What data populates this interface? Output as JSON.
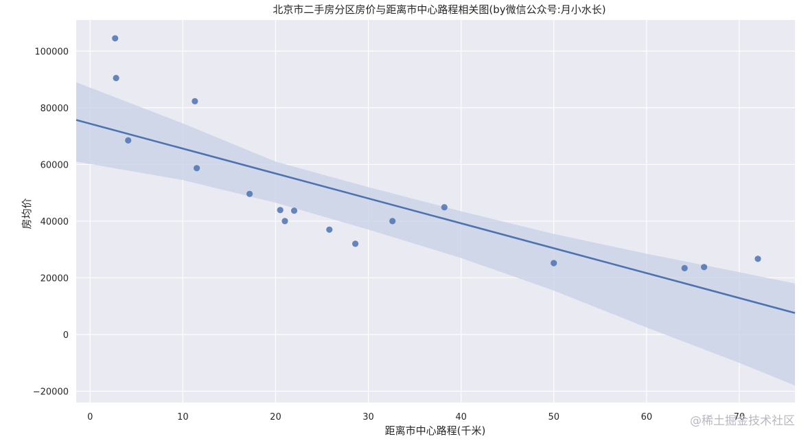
{
  "chart_data": {
    "type": "scatter",
    "title": "北京市二手房分区房价与距离市中心路程相关图(by微信公众号:月小水长)",
    "xlabel": "距离市中心路程(千米)",
    "ylabel": "房均价",
    "xlim": [
      -1.5,
      76
    ],
    "ylim": [
      -24000,
      111000
    ],
    "xticks": [
      0,
      10,
      20,
      30,
      40,
      50,
      60,
      70
    ],
    "yticks": [
      -20000,
      0,
      20000,
      40000,
      60000,
      80000,
      100000
    ],
    "xtick_labels": [
      "0",
      "10",
      "20",
      "30",
      "40",
      "50",
      "60",
      "70"
    ],
    "ytick_labels": [
      "−20000",
      "0",
      "20000",
      "40000",
      "60000",
      "80000",
      "100000"
    ],
    "grid": true,
    "points": [
      {
        "x": 2.7,
        "y": 104500
      },
      {
        "x": 2.8,
        "y": 90500
      },
      {
        "x": 4.1,
        "y": 68500
      },
      {
        "x": 11.3,
        "y": 82300
      },
      {
        "x": 11.5,
        "y": 58700
      },
      {
        "x": 17.2,
        "y": 49600
      },
      {
        "x": 20.5,
        "y": 43900
      },
      {
        "x": 21.0,
        "y": 40000
      },
      {
        "x": 22.0,
        "y": 43700
      },
      {
        "x": 25.8,
        "y": 37000
      },
      {
        "x": 28.6,
        "y": 32000
      },
      {
        "x": 32.6,
        "y": 40000
      },
      {
        "x": 38.2,
        "y": 44900
      },
      {
        "x": 50.0,
        "y": 25200
      },
      {
        "x": 64.1,
        "y": 23400
      },
      {
        "x": 66.2,
        "y": 23800
      },
      {
        "x": 72.0,
        "y": 26700
      }
    ],
    "regression": {
      "line": [
        {
          "x": -1.5,
          "y": 75700
        },
        {
          "x": 76,
          "y": 7600
        }
      ],
      "ci_upper": [
        {
          "x": -1.5,
          "y": 89000
        },
        {
          "x": 10,
          "y": 74500
        },
        {
          "x": 20,
          "y": 61000
        },
        {
          "x": 30,
          "y": 52000
        },
        {
          "x": 40,
          "y": 43500
        },
        {
          "x": 50,
          "y": 35500
        },
        {
          "x": 60,
          "y": 28500
        },
        {
          "x": 70,
          "y": 22000
        },
        {
          "x": 76,
          "y": 18000
        }
      ],
      "ci_lower": [
        {
          "x": -1.5,
          "y": 61000
        },
        {
          "x": 10,
          "y": 54500
        },
        {
          "x": 20,
          "y": 46500
        },
        {
          "x": 30,
          "y": 37000
        },
        {
          "x": 40,
          "y": 27000
        },
        {
          "x": 50,
          "y": 15500
        },
        {
          "x": 60,
          "y": 2500
        },
        {
          "x": 70,
          "y": -10000
        },
        {
          "x": 76,
          "y": -18000
        }
      ]
    },
    "colors": {
      "background": "#eaeaf2",
      "grid": "#ffffff",
      "points": "#4c72b0",
      "line": "#4c72b0",
      "ci_band": "#c5d0e6"
    }
  },
  "watermark": "@稀土掘金技术社区"
}
